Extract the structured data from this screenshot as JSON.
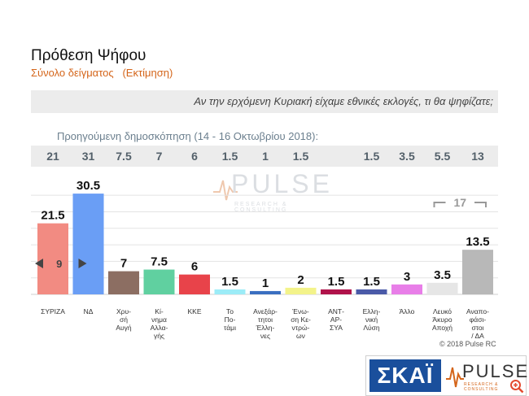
{
  "header": {
    "title": "Πρόθεση Ψήφου",
    "subtitle": "Σύνολο δείγματος   (Εκτίμηση)"
  },
  "question": "Αν την ερχόμενη Κυριακή είχαμε εθνικές εκλογές, τι θα ψηφίζατε;",
  "previous_poll": {
    "label": "Προηγούμενη δημοσκόπηση (14 - 16 Οκτωβρίου 2018):",
    "values": [
      "21",
      "31",
      "7.5",
      "7",
      "6",
      "1.5",
      "1",
      "1.5",
      "",
      "1.5",
      "3.5",
      "5.5",
      "13"
    ]
  },
  "chart_data": {
    "type": "bar",
    "categories": [
      "ΣΥΡΙΖΑ",
      "ΝΔ",
      "Χρυ-σή Αυγή",
      "Κί-νημα Αλλα-γής",
      "ΚΚΕ",
      "Το Πο-τάμι",
      "Ανεξάρ-τητοι Έλλη-νες",
      "Ένω-ση Κε-ντρώ-ων",
      "ΑΝΤ-ΑΡ-ΣΥΑ",
      "Ελλη-νική Λύση",
      "Άλλο",
      "Λευκό Άκυρο Αποχή",
      "Αναπο-φάσι-στοι / ΔΑ"
    ],
    "category_lines": [
      [
        "ΣΥΡΙΖΑ"
      ],
      [
        "ΝΔ"
      ],
      [
        "Χρυ-",
        "σή",
        "Αυγή"
      ],
      [
        "Κί-",
        "νημα",
        "Αλλα-",
        "γής"
      ],
      [
        "ΚΚΕ"
      ],
      [
        "Το",
        "Πο-",
        "τάμι"
      ],
      [
        "Ανεξάρ-",
        "τητοι",
        "Έλλη-",
        "νες"
      ],
      [
        "Ένω-",
        "ση Κε-",
        "ντρώ-",
        "ων"
      ],
      [
        "ΑΝΤ-",
        "ΑΡ-",
        "ΣΥΑ"
      ],
      [
        "Ελλη-",
        "νική",
        "Λύση"
      ],
      [
        "Άλλο"
      ],
      [
        "Λευκό",
        "Άκυρο",
        "Αποχή"
      ],
      [
        "Αναπο-",
        "φάσι-",
        "στοι",
        "/ ΔΑ"
      ]
    ],
    "values": [
      21.5,
      30.5,
      7,
      7.5,
      6,
      1.5,
      1,
      2,
      1.5,
      1.5,
      3,
      3.5,
      13.5
    ],
    "data_labels": [
      "21.5",
      "30.5",
      "7",
      "7.5",
      "6",
      "1.5",
      "1",
      "2",
      "1.5",
      "1.5",
      "3",
      "3.5",
      "13.5"
    ],
    "colors": [
      "#f28b82",
      "#6a9ef5",
      "#8c6e62",
      "#60d0a0",
      "#e8434a",
      "#9cecf7",
      "#3a6fc0",
      "#f3f38a",
      "#b0124a",
      "#4a5aa8",
      "#e87ee8",
      "#e6e6e6",
      "#b8b8b8"
    ],
    "ylim": [
      0,
      32
    ],
    "grid": true,
    "annotations": {
      "gap_label": "9",
      "bracket_label": "17"
    }
  },
  "watermark": {
    "brand": "PULSE",
    "tagline": "RESEARCH & CONSULTING"
  },
  "copyright": "© 2018 Pulse RC",
  "logos": {
    "skai": "ΣΚΑΪ",
    "pulse": "PULSE",
    "pulse_tagline": "RESEARCH & CONSULTING"
  }
}
